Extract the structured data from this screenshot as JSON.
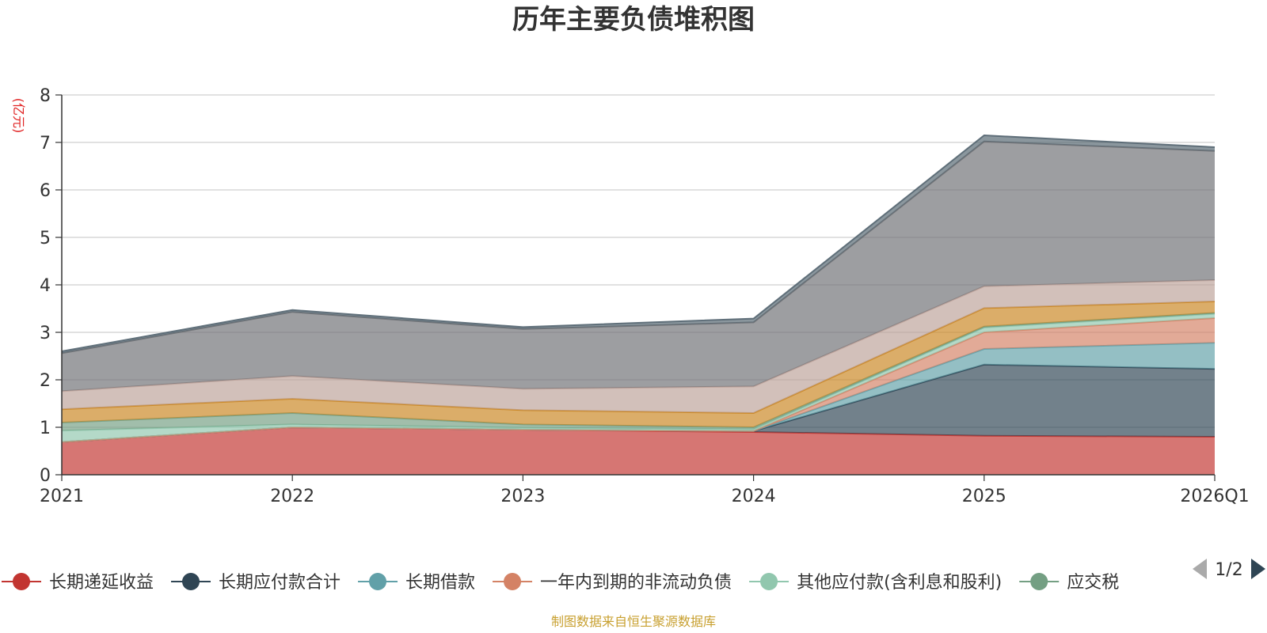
{
  "chart_data": {
    "type": "area",
    "stacked": true,
    "title": "历年主要负债堆积图",
    "unit_label": "(亿元)",
    "categories": [
      "2021",
      "2022",
      "2023",
      "2024",
      "2025",
      "2026Q1"
    ],
    "ylim": [
      0,
      8
    ],
    "yticks": [
      "0",
      "1",
      "2",
      "3",
      "4",
      "5",
      "6",
      "7",
      "8"
    ],
    "grid": true,
    "legend_position": "bottom",
    "series": [
      {
        "name": "长期递延收益",
        "color": "#c23531",
        "values": [
          0.69,
          1.0,
          0.95,
          0.9,
          0.82,
          0.8
        ],
        "in_legend": true
      },
      {
        "name": "长期应付款合计",
        "color": "#2f4554",
        "values": [
          0.0,
          0.0,
          0.0,
          0.02,
          1.5,
          1.43
        ],
        "in_legend": true
      },
      {
        "name": "长期借款",
        "color": "#61a0a8",
        "values": [
          0.0,
          0.0,
          0.0,
          0.0,
          0.33,
          0.55
        ],
        "in_legend": true
      },
      {
        "name": "一年内到期的非流动负债",
        "color": "#d48265",
        "values": [
          0.0,
          0.0,
          0.0,
          0.0,
          0.35,
          0.52
        ],
        "in_legend": true
      },
      {
        "name": "其他应付款(含利息和股利)",
        "color": "#91c7ae",
        "values": [
          0.24,
          0.06,
          0.04,
          0.04,
          0.1,
          0.09
        ],
        "in_legend": true
      },
      {
        "name": "应交税",
        "color": "#749f83",
        "values": [
          0.17,
          0.24,
          0.07,
          0.04,
          0.02,
          0.02
        ],
        "in_legend": true
      },
      {
        "name": "",
        "color": "#ca8622",
        "values": [
          0.28,
          0.3,
          0.3,
          0.3,
          0.39,
          0.24
        ],
        "in_legend": false
      },
      {
        "name": "",
        "color": "#bda29a",
        "values": [
          0.38,
          0.48,
          0.45,
          0.56,
          0.46,
          0.45
        ],
        "in_legend": false
      },
      {
        "name": "",
        "color": "#6e7074",
        "values": [
          0.8,
          1.35,
          1.26,
          1.35,
          3.05,
          2.72
        ],
        "in_legend": false
      },
      {
        "name": "",
        "color": "#546570",
        "values": [
          0.04,
          0.04,
          0.04,
          0.08,
          0.13,
          0.08
        ],
        "in_legend": false
      }
    ]
  },
  "legend": {
    "page_indicator": "1/2",
    "prev_icon": "triangle-left-icon",
    "next_icon": "triangle-right-icon"
  },
  "source_note": "制图数据来自恒生聚源数据库"
}
